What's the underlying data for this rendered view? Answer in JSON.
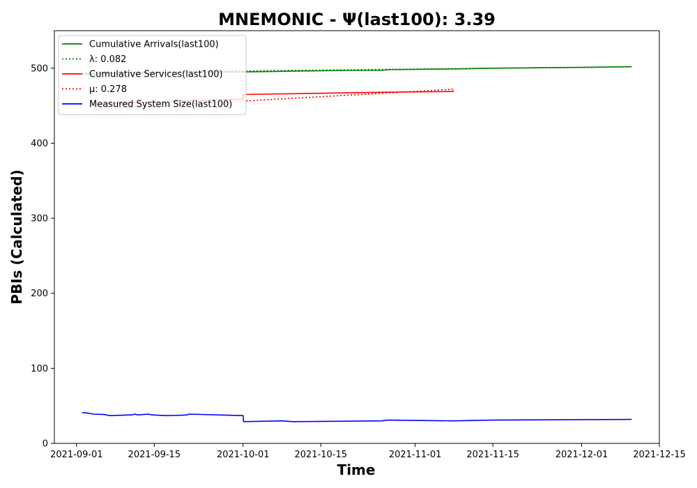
{
  "chart_data": {
    "type": "line",
    "title": "MNEMONIC -  Ψ(last100): 3.39",
    "xlabel": "Time",
    "ylabel": "PBIs (Calculated)",
    "xlim": [
      "2021-08-28",
      "2021-12-15"
    ],
    "ylim": [
      0,
      550
    ],
    "xticks": [
      "2021-09-01",
      "2021-09-15",
      "2021-10-01",
      "2021-10-15",
      "2021-11-01",
      "2021-11-15",
      "2021-12-01",
      "2021-12-15"
    ],
    "yticks": [
      0,
      100,
      200,
      300,
      400,
      500
    ],
    "grid": false,
    "legend_position": "top-left",
    "series": [
      {
        "name": "Cumulative Arrivals(last100)",
        "color": "#008000",
        "style": "solid",
        "points": [
          [
            "2021-09-02",
            492
          ],
          [
            "2021-09-06",
            493
          ],
          [
            "2021-09-10",
            494
          ],
          [
            "2021-09-15",
            494
          ],
          [
            "2021-09-22",
            495
          ],
          [
            "2021-10-01",
            495
          ],
          [
            "2021-10-10",
            496
          ],
          [
            "2021-10-20",
            497
          ],
          [
            "2021-10-26",
            497
          ],
          [
            "2021-10-27",
            498
          ],
          [
            "2021-11-08",
            499
          ],
          [
            "2021-11-15",
            500
          ],
          [
            "2021-12-01",
            501
          ],
          [
            "2021-12-10",
            502
          ]
        ]
      },
      {
        "name": "λ: 0.082",
        "color": "#008000",
        "style": "dotted",
        "points": [
          [
            "2021-09-02",
            494
          ],
          [
            "2021-12-10",
            502
          ]
        ]
      },
      {
        "name": "Cumulative Services(last100)",
        "color": "#ff0000",
        "style": "solid",
        "points": [
          [
            "2021-09-04",
            452
          ],
          [
            "2021-09-15",
            455
          ],
          [
            "2021-10-01",
            459
          ],
          [
            "2021-10-01",
            465
          ],
          [
            "2021-10-10",
            466
          ],
          [
            "2021-10-26",
            468
          ],
          [
            "2021-11-08",
            469
          ]
        ]
      },
      {
        "name": "μ: 0.278",
        "color": "#ff0000",
        "style": "dotted",
        "points": [
          [
            "2021-09-04",
            445
          ],
          [
            "2021-11-08",
            472
          ]
        ]
      },
      {
        "name": "Measured System Size(last100)",
        "color": "#0000ff",
        "style": "solid",
        "points": [
          [
            "2021-09-02",
            41
          ],
          [
            "2021-09-03",
            40.5
          ],
          [
            "2021-09-04",
            39
          ],
          [
            "2021-09-06",
            38.5
          ],
          [
            "2021-09-07",
            37
          ],
          [
            "2021-09-11",
            38
          ],
          [
            "2021-09-11.5",
            39
          ],
          [
            "2021-09-12",
            38
          ],
          [
            "2021-09-13",
            38.5
          ],
          [
            "2021-09-14",
            39
          ],
          [
            "2021-09-14.5",
            38
          ],
          [
            "2021-09-17",
            37
          ],
          [
            "2021-09-20",
            37.5
          ],
          [
            "2021-09-21",
            38
          ],
          [
            "2021-09-21.2",
            39
          ],
          [
            "2021-10-01",
            37
          ],
          [
            "2021-10-01.1",
            29
          ],
          [
            "2021-10-08",
            30
          ],
          [
            "2021-10-10",
            29
          ],
          [
            "2021-10-26",
            30
          ],
          [
            "2021-10-27",
            31
          ],
          [
            "2021-11-08",
            30
          ],
          [
            "2021-11-15",
            31
          ],
          [
            "2021-12-10",
            32
          ]
        ]
      }
    ]
  }
}
